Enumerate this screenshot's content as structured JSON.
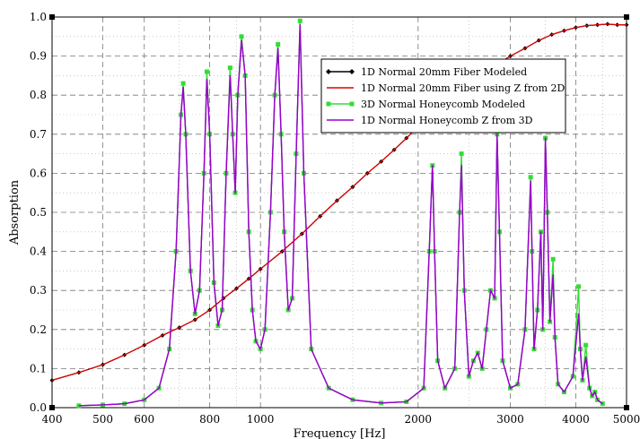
{
  "chart_data": {
    "type": "line",
    "xlabel": "Frequency [Hz]",
    "ylabel": "Absorption",
    "xscale": "log",
    "xlim": [
      400,
      5000
    ],
    "ylim": [
      0,
      1.0
    ],
    "xticks": [
      400,
      500,
      600,
      800,
      1000,
      2000,
      3000,
      4000,
      5000
    ],
    "xtick_labels": [
      "400",
      "500",
      "600",
      "800",
      "1000",
      "2000",
      "3000",
      "4000",
      "5000"
    ],
    "xticks_minor": [
      700,
      900,
      1500,
      2500,
      3500,
      4500
    ],
    "yticks": [
      0.0,
      0.1,
      0.2,
      0.3,
      0.4,
      0.5,
      0.6,
      0.7,
      0.8,
      0.9,
      1.0
    ],
    "ytick_labels": [
      "0.0",
      "0.1",
      "0.2",
      "0.3",
      "0.4",
      "0.5",
      "0.6",
      "0.7",
      "0.8",
      "0.9",
      "1.0"
    ],
    "grid": true,
    "legend_position": "upper-right",
    "series": [
      {
        "name": "1D Normal 20mm Fiber Modeled",
        "color": "#000000",
        "marker": "diamond",
        "x": [
          400,
          450,
          500,
          550,
          600,
          650,
          700,
          750,
          800,
          850,
          900,
          950,
          1000,
          1100,
          1200,
          1300,
          1400,
          1500,
          1600,
          1700,
          1800,
          1900,
          2000,
          2200,
          2400,
          2600,
          2800,
          3000,
          3200,
          3400,
          3600,
          3800,
          4000,
          4200,
          4400,
          4600,
          4800,
          5000
        ],
        "y": [
          0.07,
          0.09,
          0.11,
          0.135,
          0.16,
          0.185,
          0.205,
          0.225,
          0.25,
          0.28,
          0.305,
          0.33,
          0.355,
          0.4,
          0.445,
          0.49,
          0.53,
          0.565,
          0.6,
          0.63,
          0.66,
          0.69,
          0.72,
          0.77,
          0.81,
          0.845,
          0.875,
          0.9,
          0.92,
          0.94,
          0.955,
          0.965,
          0.973,
          0.978,
          0.98,
          0.982,
          0.98,
          0.98
        ]
      },
      {
        "name": "1D Normal 20mm Fiber using Z from 2D",
        "color": "#e00000",
        "marker": "none",
        "x": [
          400,
          450,
          500,
          550,
          600,
          650,
          700,
          750,
          800,
          850,
          900,
          950,
          1000,
          1100,
          1200,
          1300,
          1400,
          1500,
          1600,
          1700,
          1800,
          1900,
          2000,
          2200,
          2400,
          2600,
          2800,
          3000,
          3200,
          3400,
          3600,
          3800,
          4000,
          4200,
          4400,
          4600,
          4800,
          5000
        ],
        "y": [
          0.07,
          0.09,
          0.11,
          0.135,
          0.16,
          0.185,
          0.205,
          0.225,
          0.25,
          0.28,
          0.305,
          0.33,
          0.355,
          0.4,
          0.445,
          0.49,
          0.53,
          0.565,
          0.6,
          0.63,
          0.66,
          0.69,
          0.72,
          0.77,
          0.81,
          0.845,
          0.875,
          0.9,
          0.92,
          0.94,
          0.955,
          0.965,
          0.973,
          0.978,
          0.98,
          0.982,
          0.98,
          0.98
        ]
      },
      {
        "name": "3D Normal Honeycomb Modeled",
        "color": "#33dd33",
        "marker": "square",
        "x": [
          450,
          500,
          550,
          600,
          640,
          670,
          690,
          705,
          712,
          720,
          735,
          750,
          765,
          780,
          790,
          800,
          815,
          830,
          845,
          860,
          875,
          885,
          895,
          905,
          920,
          935,
          950,
          965,
          980,
          1000,
          1020,
          1045,
          1065,
          1080,
          1095,
          1110,
          1130,
          1150,
          1170,
          1190,
          1210,
          1250,
          1350,
          1500,
          1700,
          1900,
          2050,
          2100,
          2130,
          2150,
          2180,
          2250,
          2350,
          2400,
          2420,
          2450,
          2500,
          2550,
          2600,
          2650,
          2700,
          2750,
          2800,
          2830,
          2860,
          2900,
          3000,
          3100,
          3200,
          3280,
          3300,
          3330,
          3380,
          3430,
          3460,
          3500,
          3530,
          3570,
          3620,
          3650,
          3700,
          3800,
          3950,
          4050,
          4080,
          4120,
          4180,
          4250,
          4300,
          4350,
          4400,
          4500
        ],
        "y": [
          0.005,
          0.007,
          0.01,
          0.02,
          0.05,
          0.15,
          0.4,
          0.75,
          0.83,
          0.7,
          0.35,
          0.24,
          0.3,
          0.6,
          0.86,
          0.7,
          0.32,
          0.21,
          0.25,
          0.6,
          0.87,
          0.7,
          0.55,
          0.8,
          0.95,
          0.85,
          0.45,
          0.25,
          0.17,
          0.15,
          0.2,
          0.5,
          0.8,
          0.93,
          0.7,
          0.45,
          0.25,
          0.28,
          0.65,
          0.99,
          0.6,
          0.15,
          0.05,
          0.02,
          0.012,
          0.015,
          0.05,
          0.4,
          0.62,
          0.4,
          0.12,
          0.05,
          0.1,
          0.5,
          0.65,
          0.3,
          0.08,
          0.12,
          0.14,
          0.1,
          0.2,
          0.3,
          0.28,
          0.7,
          0.45,
          0.12,
          0.05,
          0.06,
          0.2,
          0.59,
          0.4,
          0.15,
          0.25,
          0.45,
          0.2,
          0.69,
          0.5,
          0.22,
          0.38,
          0.18,
          0.06,
          0.04,
          0.08,
          0.31,
          0.15,
          0.07,
          0.16,
          0.05,
          0.03,
          0.04,
          0.02,
          0.01
        ]
      },
      {
        "name": "1D Normal Honeycomb Z from 3D",
        "color": "#9900cc",
        "marker": "none",
        "x": [
          450,
          500,
          550,
          600,
          640,
          670,
          690,
          705,
          712,
          720,
          735,
          750,
          765,
          780,
          790,
          800,
          815,
          830,
          845,
          860,
          875,
          885,
          895,
          905,
          920,
          935,
          950,
          965,
          980,
          1000,
          1020,
          1045,
          1065,
          1080,
          1095,
          1110,
          1130,
          1150,
          1170,
          1190,
          1210,
          1250,
          1350,
          1500,
          1700,
          1900,
          2050,
          2100,
          2130,
          2150,
          2180,
          2250,
          2350,
          2400,
          2420,
          2450,
          2500,
          2550,
          2600,
          2650,
          2700,
          2750,
          2800,
          2830,
          2860,
          2900,
          3000,
          3100,
          3200,
          3280,
          3300,
          3330,
          3380,
          3430,
          3460,
          3500,
          3530,
          3570,
          3620,
          3650,
          3700,
          3800,
          3950,
          4050,
          4080,
          4120,
          4180,
          4250,
          4300,
          4350,
          4400,
          4500
        ],
        "y": [
          0.005,
          0.007,
          0.01,
          0.02,
          0.05,
          0.15,
          0.4,
          0.75,
          0.82,
          0.7,
          0.35,
          0.24,
          0.3,
          0.6,
          0.84,
          0.7,
          0.32,
          0.21,
          0.25,
          0.6,
          0.85,
          0.7,
          0.55,
          0.8,
          0.94,
          0.85,
          0.45,
          0.25,
          0.17,
          0.15,
          0.2,
          0.5,
          0.8,
          0.92,
          0.7,
          0.45,
          0.25,
          0.28,
          0.65,
          0.98,
          0.6,
          0.15,
          0.05,
          0.02,
          0.012,
          0.015,
          0.05,
          0.4,
          0.62,
          0.4,
          0.12,
          0.05,
          0.1,
          0.5,
          0.62,
          0.3,
          0.08,
          0.12,
          0.14,
          0.1,
          0.2,
          0.3,
          0.28,
          0.7,
          0.45,
          0.12,
          0.05,
          0.06,
          0.2,
          0.58,
          0.4,
          0.15,
          0.25,
          0.45,
          0.2,
          0.69,
          0.5,
          0.22,
          0.34,
          0.18,
          0.06,
          0.04,
          0.08,
          0.24,
          0.15,
          0.07,
          0.13,
          0.05,
          0.03,
          0.04,
          0.02,
          0.01
        ]
      }
    ]
  }
}
